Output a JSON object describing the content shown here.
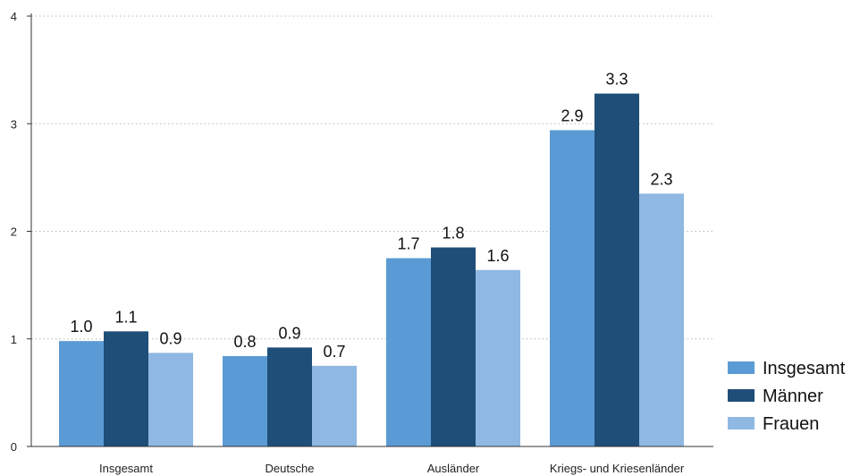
{
  "chart_data": {
    "type": "bar",
    "categories": [
      "Insgesamt",
      "Deutsche",
      "Ausländer",
      "Kriegs- und Kriesenländer"
    ],
    "series": [
      {
        "name": "Insgesamt",
        "color": "#5b9bd5",
        "values": [
          0.98,
          0.84,
          1.75,
          2.94
        ],
        "labels": [
          "1.0",
          "0.8",
          "1.7",
          "2.9"
        ]
      },
      {
        "name": "Männer",
        "color": "#1f4e79",
        "values": [
          1.07,
          0.92,
          1.85,
          3.28
        ],
        "labels": [
          "1.1",
          "0.9",
          "1.8",
          "3.3"
        ]
      },
      {
        "name": "Frauen",
        "color": "#8fb8e2",
        "values": [
          0.87,
          0.75,
          1.64,
          2.35
        ],
        "labels": [
          "0.9",
          "0.7",
          "1.6",
          "2.3"
        ]
      }
    ],
    "yticks": [
      0,
      1,
      2,
      3,
      4
    ],
    "ylim": [
      0,
      4
    ],
    "grid": true,
    "legend_position": "right"
  }
}
